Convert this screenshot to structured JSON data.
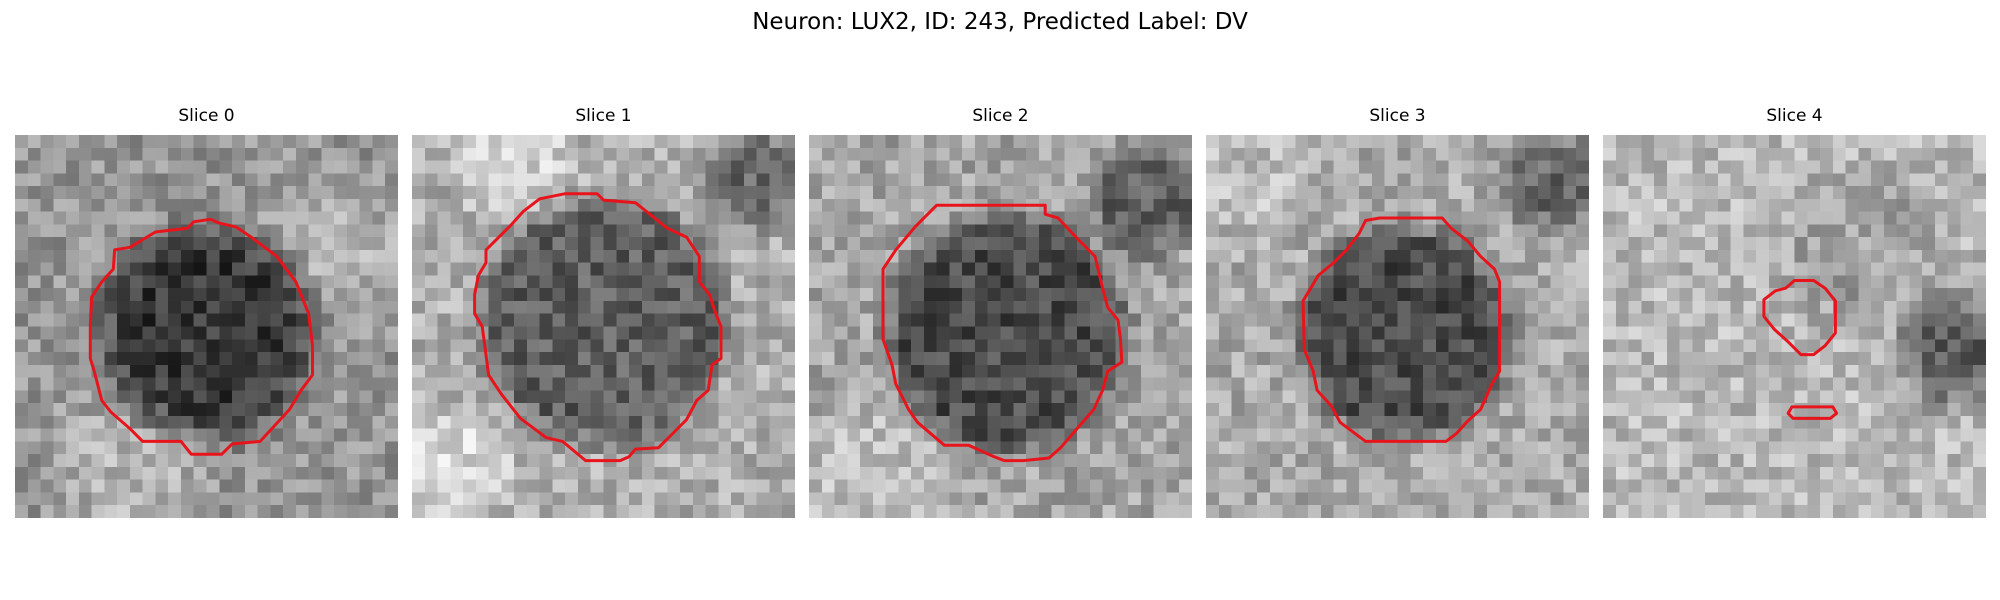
{
  "figure": {
    "title": "Neuron: LUX2, ID: 243, Predicted Label: DV",
    "contour_color": "#e8141c",
    "colormap": "gray"
  },
  "panels": [
    {
      "title": "Slice 0"
    },
    {
      "title": "Slice 1"
    },
    {
      "title": "Slice 2"
    },
    {
      "title": "Slice 3"
    },
    {
      "title": "Slice 4"
    }
  ]
}
